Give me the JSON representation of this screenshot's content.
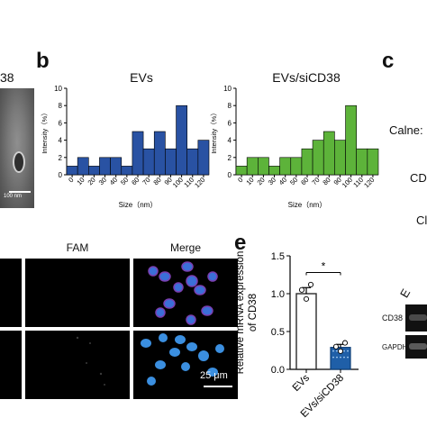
{
  "panel_letters": {
    "b": "b",
    "c": "c",
    "e": "e"
  },
  "top_left": {
    "partial_label": "38",
    "scale_bar": "100 nm"
  },
  "panel_c": {
    "labels": [
      "Calne:",
      "CD",
      "Cl"
    ]
  },
  "chart_data": [
    {
      "type": "bar",
      "title": "EVs",
      "xlabel": "Size（nm）",
      "ylabel": "Intensity（%）",
      "ylim": [
        0,
        10
      ],
      "yticks": [
        0,
        2,
        4,
        6,
        8,
        10
      ],
      "categories": [
        "0",
        "10",
        "20",
        "30",
        "40",
        "50",
        "60",
        "70",
        "80",
        "90",
        "100",
        "110",
        "120"
      ],
      "values": [
        1,
        2,
        1,
        2,
        2,
        1,
        5,
        3,
        5,
        3,
        8,
        3,
        4
      ],
      "color": "#2952a3"
    },
    {
      "type": "bar",
      "title": "EVs/siCD38",
      "xlabel": "Size（nm）",
      "ylabel": "Intensity（%）",
      "ylim": [
        0,
        10
      ],
      "yticks": [
        0,
        2,
        4,
        6,
        8,
        10
      ],
      "categories": [
        "0",
        "10",
        "20",
        "30",
        "40",
        "50",
        "60",
        "70",
        "80",
        "90",
        "100",
        "110",
        "120"
      ],
      "values": [
        1,
        2,
        2,
        1,
        2,
        2,
        3,
        4,
        5,
        4,
        8,
        3,
        3
      ],
      "color": "#5db33a"
    },
    {
      "type": "bar",
      "title": "",
      "ylabel": "Relative mRNA expression\nof CD38",
      "ylim": [
        0,
        1.5
      ],
      "yticks": [
        "0.0",
        "0.5",
        "1.0",
        "1.5"
      ],
      "categories": [
        "EVs",
        "EVs/siCD38"
      ],
      "values": [
        1.0,
        0.29
      ],
      "errors": [
        0.08,
        0.04
      ],
      "points": [
        [
          1.05,
          0.93,
          1.12
        ],
        [
          0.3,
          0.24,
          0.35
        ]
      ],
      "significance": "*",
      "colors": [
        "#2a2a2a",
        "#1f5fa8"
      ]
    }
  ],
  "microscopy": {
    "col_fam": "FAM",
    "col_merge": "Merge",
    "scale_bar": "25 μm"
  },
  "blot": {
    "lane_label": "E",
    "bands": [
      "CD38",
      "GAPDH"
    ]
  }
}
